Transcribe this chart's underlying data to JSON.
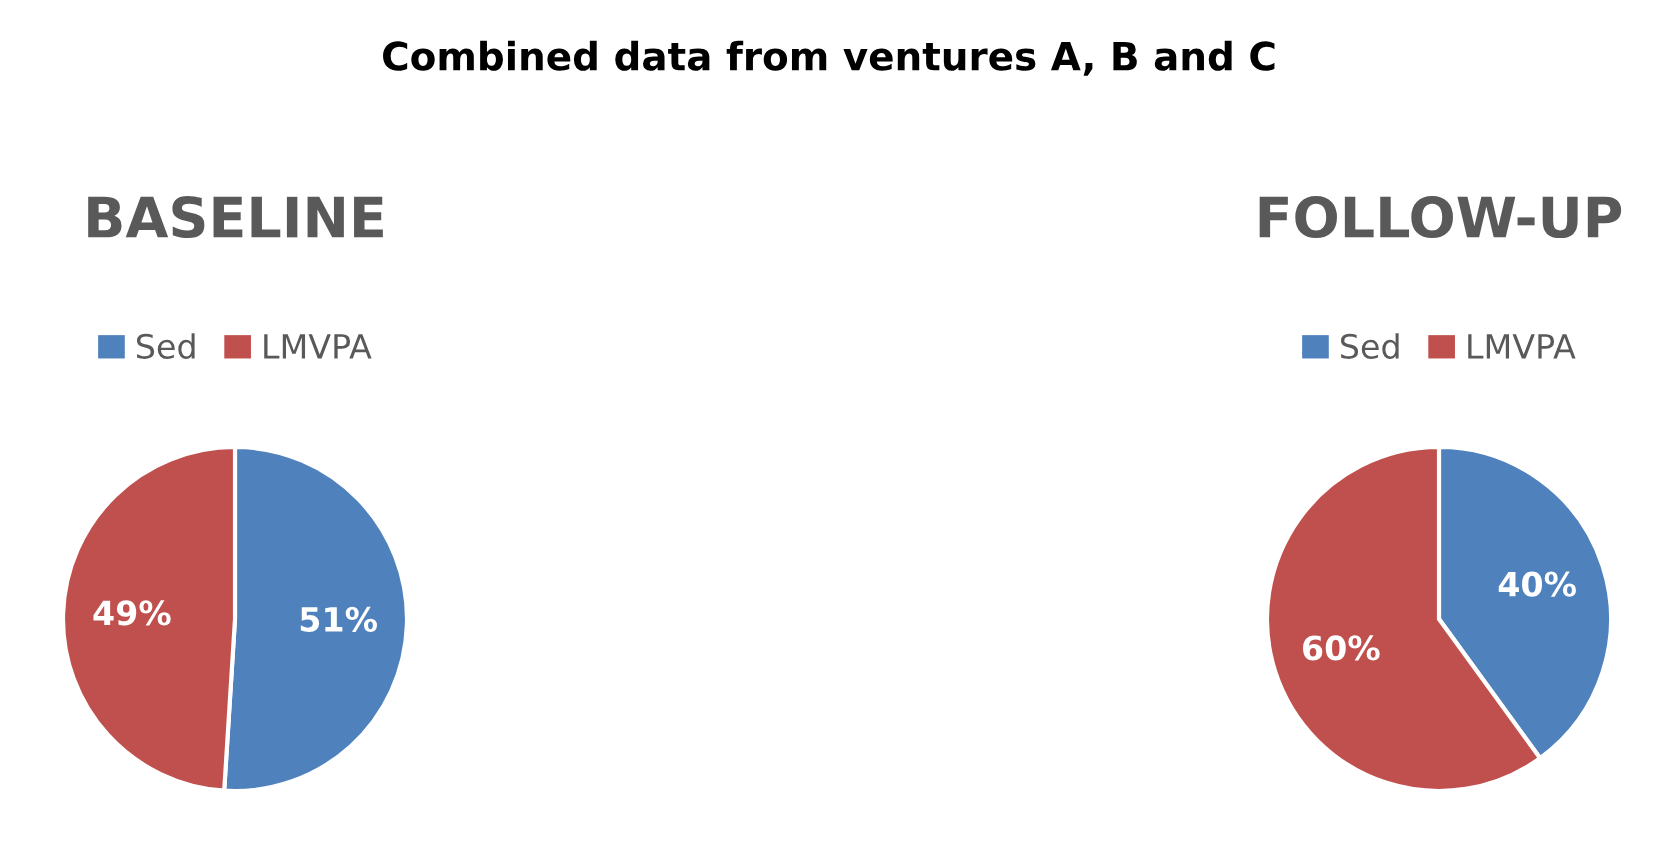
{
  "chart_data": [
    {
      "type": "pie",
      "title": "BASELINE",
      "annotations": [
        "Combined data from ventures A, B and C"
      ],
      "categories": [
        "Sed",
        "LMVPA"
      ],
      "values": [
        51,
        49
      ],
      "colors": [
        "#4f81bd",
        "#c0504d"
      ],
      "value_labels": [
        "51%",
        "49%"
      ],
      "legend": "top"
    },
    {
      "type": "pie",
      "title": "FOLLOW-UP",
      "categories": [
        "Sed",
        "LMVPA"
      ],
      "values": [
        40,
        60
      ],
      "colors": [
        "#4f81bd",
        "#c0504d"
      ],
      "value_labels": [
        "40%",
        "60%"
      ],
      "legend": "top"
    }
  ]
}
